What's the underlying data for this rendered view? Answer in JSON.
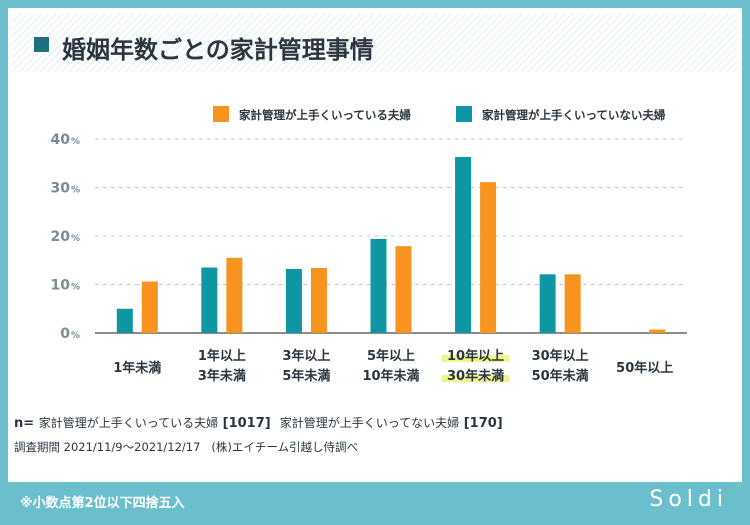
{
  "title": "婚姻年数ごとの家計管理事情",
  "colors": {
    "good": "#f7931e",
    "bad": "#0e97a3",
    "grid": "#c8c8c8",
    "axis": "#666666",
    "tick": "#7b8b95",
    "highlight": "#eef58a"
  },
  "chart_data": {
    "type": "bar",
    "categories": [
      [
        "1年未満"
      ],
      [
        "1年以上",
        "3年未満"
      ],
      [
        "3年以上",
        "5年未満"
      ],
      [
        "5年以上",
        "10年未満"
      ],
      [
        "10年以上",
        "30年未満"
      ],
      [
        "30年以上",
        "50年未満"
      ],
      [
        "50年以上"
      ]
    ],
    "highlighted_category": 4,
    "series": [
      {
        "name": "家計管理が上手くいっていない夫婦",
        "color": "#0e97a3",
        "values": [
          5,
          13.5,
          13.2,
          19.4,
          36.3,
          12.1,
          0
        ]
      },
      {
        "name": "家計管理が上手くいっている夫婦",
        "color": "#f7931e",
        "values": [
          10.6,
          15.5,
          13.4,
          17.9,
          31.1,
          12.1,
          0.7
        ]
      }
    ],
    "legend_order": [
      1,
      0
    ],
    "y_ticks": [
      "0",
      "10",
      "20",
      "30",
      "40"
    ],
    "y_tick_unit": "%",
    "ylim": [
      0,
      40
    ],
    "grid": true,
    "legend": "top-right"
  },
  "notes": {
    "n_prefix": "n=",
    "n_good_label": "家計管理が上手くいっている夫婦",
    "n_good_value": "[1017]",
    "n_bad_label": "家計管理が上手くいってない夫婦",
    "n_bad_value": "[170]",
    "period_label": "調査期間",
    "period_value": "2021/11/9～2021/12/17",
    "source": "(株)エイチーム引越し侍調べ"
  },
  "footnote": "※小数点第2位以下四捨五入",
  "brand": "Soldi"
}
